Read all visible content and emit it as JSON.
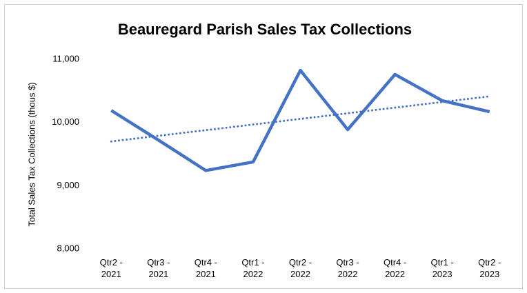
{
  "chart_data": {
    "type": "line",
    "title": "Beauregard Parish Sales Tax Collections",
    "y_label": "Total Sales Tax Collections (thous $)",
    "categories": [
      "Qtr2 - 2021",
      "Qtr3 - 2021",
      "Qtr4 - 2021",
      "Qtr1 - 2022",
      "Qtr2 - 2022",
      "Qtr3 - 2022",
      "Qtr4 - 2022",
      "Qtr1 - 2023",
      "Qtr2 - 2023"
    ],
    "series": [
      {
        "name": "Sales Tax Collections",
        "color": "#4472c4",
        "values": [
          10190,
          9720,
          9240,
          9375,
          10825,
          9887,
          10760,
          10345,
          10170
        ]
      }
    ],
    "trendline": "linear",
    "ylim": [
      8000,
      11000
    ],
    "yticks": [
      {
        "value": 8000,
        "label": "8,000"
      },
      {
        "value": 9000,
        "label": "9,000"
      },
      {
        "value": 10000,
        "label": "10,000"
      },
      {
        "value": 11000,
        "label": "11,000"
      }
    ],
    "grid": false
  }
}
